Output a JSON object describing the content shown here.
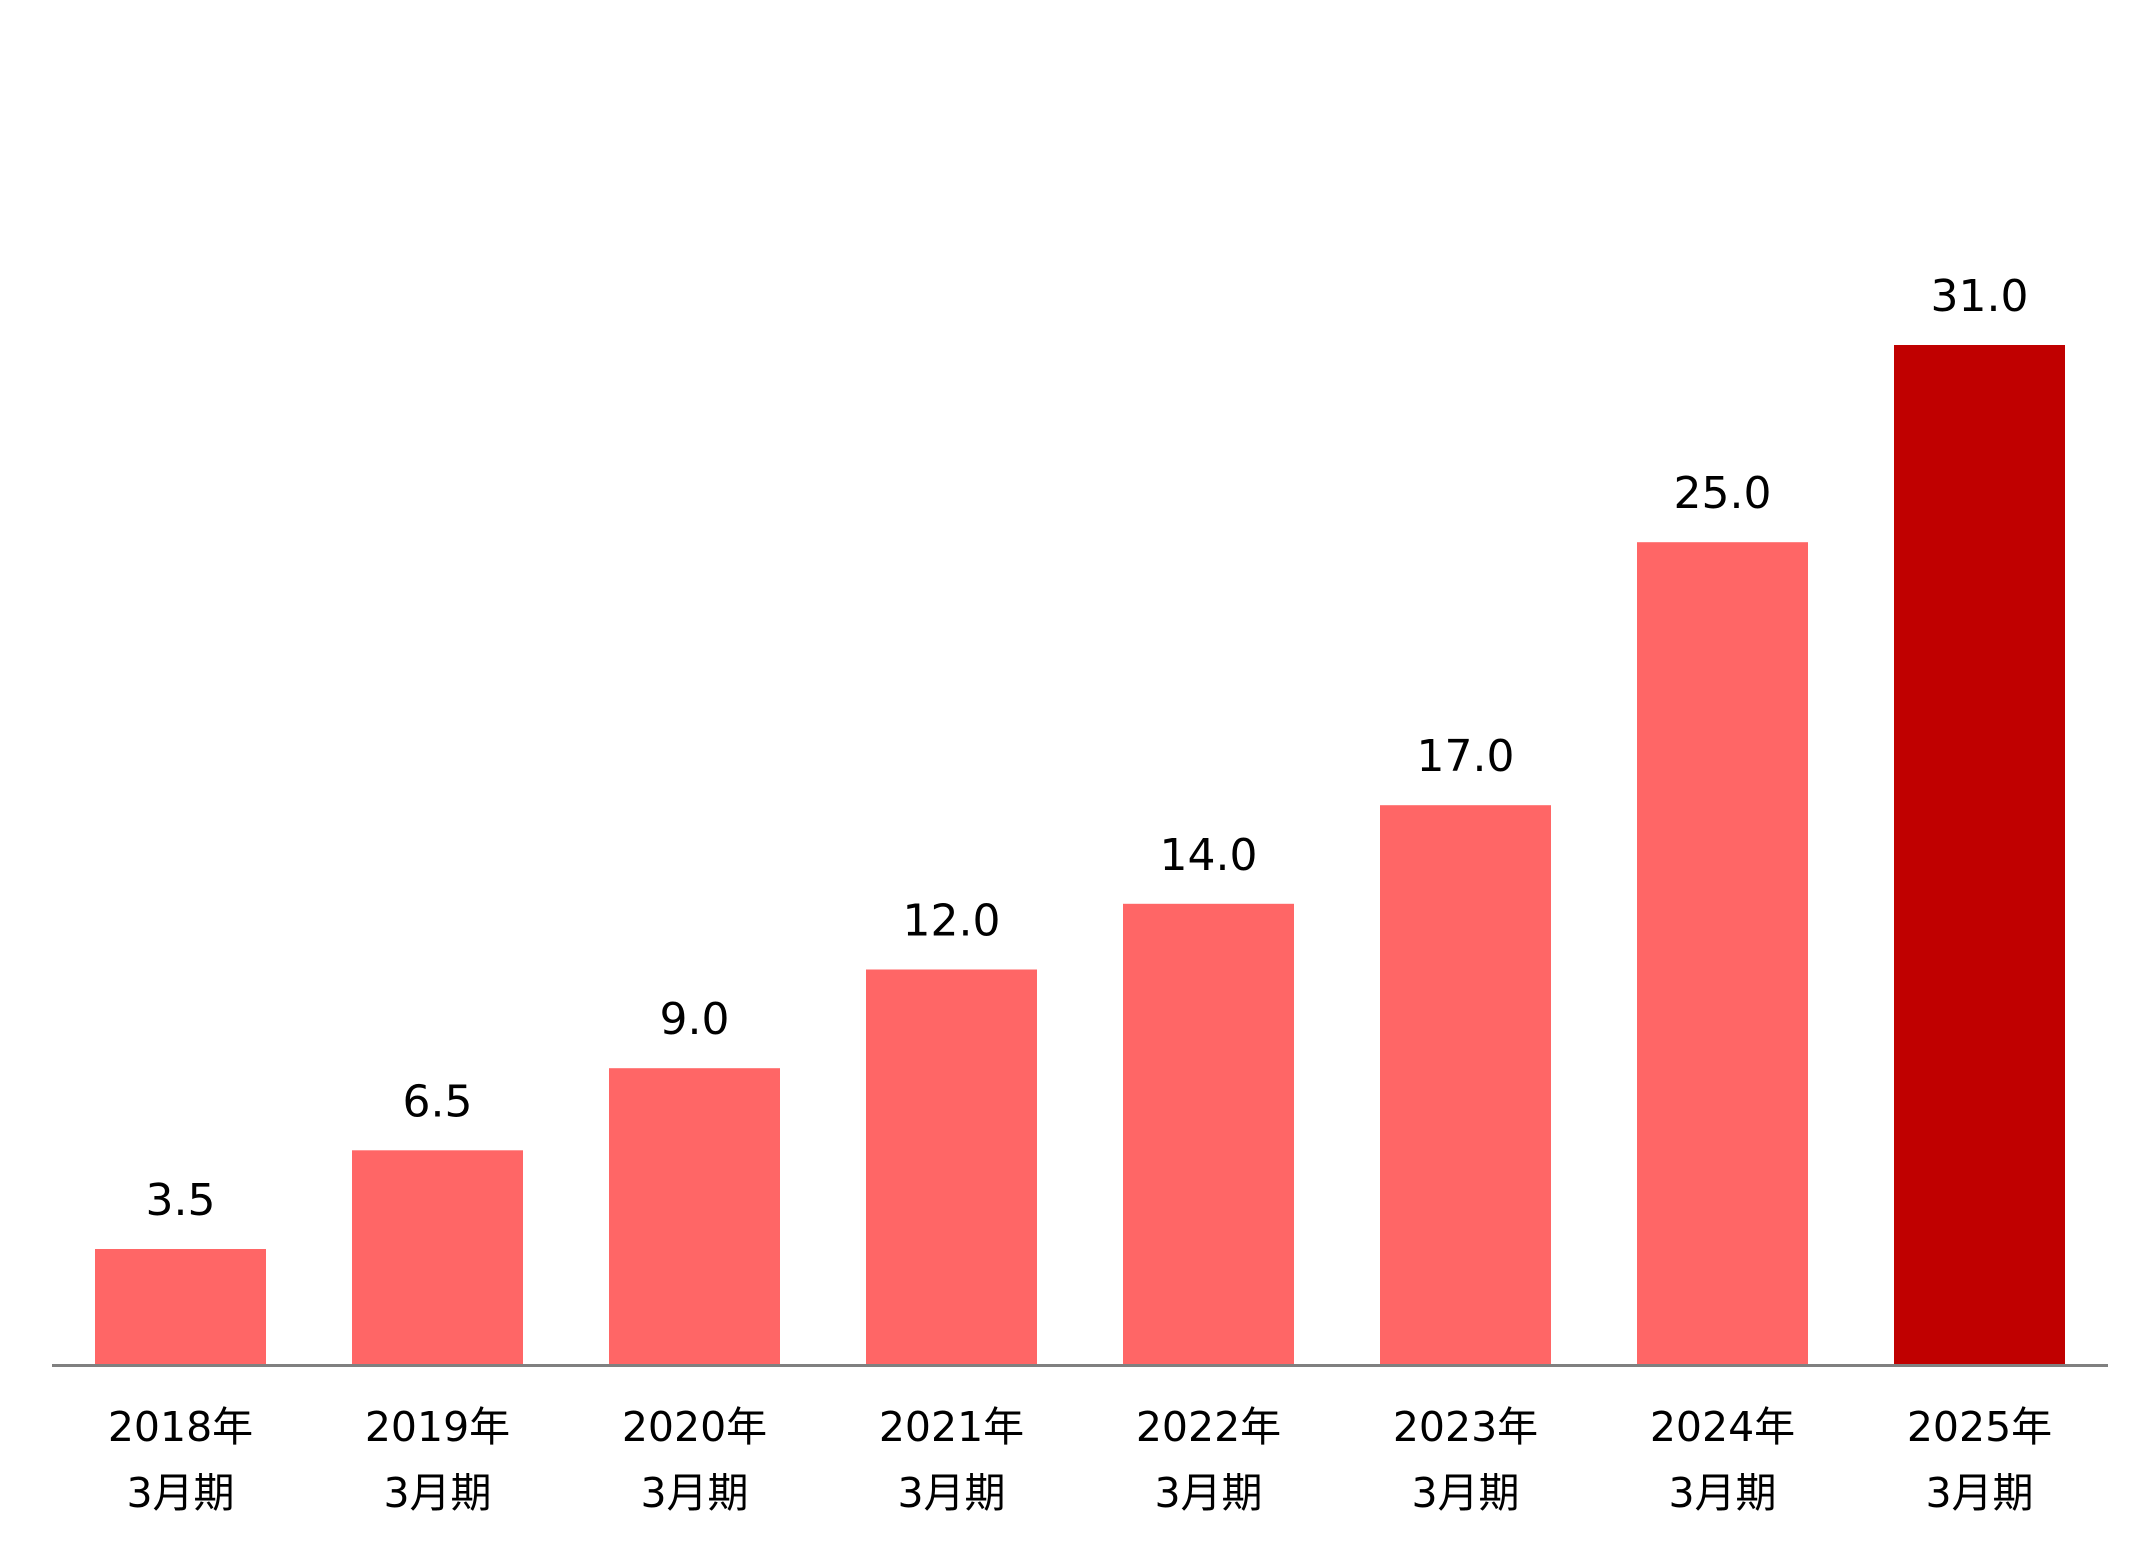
{
  "chart_data": {
    "type": "bar",
    "title": "",
    "xlabel": "",
    "ylabel": "",
    "categories": [
      [
        "2018年",
        "3月期"
      ],
      [
        "2019年",
        "3月期"
      ],
      [
        "2020年",
        "3月期"
      ],
      [
        "2021年",
        "3月期"
      ],
      [
        "2022年",
        "3月期"
      ],
      [
        "2023年",
        "3月期"
      ],
      [
        "2024年",
        "3月期"
      ],
      [
        "2025年",
        "3月期"
      ]
    ],
    "values": [
      3.5,
      6.5,
      9.0,
      12.0,
      14.0,
      17.0,
      25.0,
      31.0
    ],
    "value_labels": [
      "3.5",
      "6.5",
      "9.0",
      "12.0",
      "14.0",
      "17.0",
      "25.0",
      "31.0"
    ],
    "ylim": [
      0,
      31
    ],
    "grid": false,
    "legend": "none",
    "colors": {
      "bar": "#FF6666",
      "highlight": "#C00000",
      "axis": "#808080",
      "text": "#000000"
    },
    "highlight_index": 7
  }
}
